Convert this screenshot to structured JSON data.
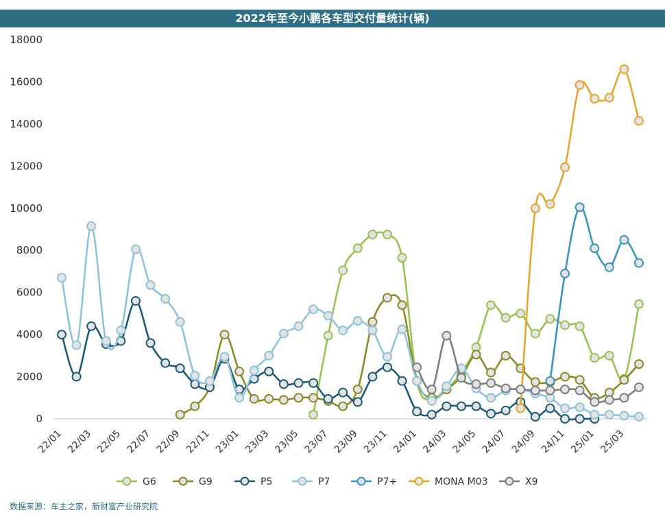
{
  "chart_data": {
    "type": "line",
    "title": "2022年至今小鹏各车型交付量统计(辆)",
    "xlabel": "",
    "ylabel": "",
    "ylim": [
      0,
      18000
    ],
    "yticks": [
      0,
      2000,
      4000,
      6000,
      8000,
      10000,
      12000,
      14000,
      16000,
      18000
    ],
    "x": [
      "22/01",
      "22/02",
      "22/03",
      "22/04",
      "22/05",
      "22/06",
      "22/07",
      "22/08",
      "22/09",
      "22/10",
      "22/11",
      "22/12",
      "23/01",
      "23/02",
      "23/03",
      "23/04",
      "23/05",
      "23/06",
      "23/07",
      "23/08",
      "23/09",
      "23/10",
      "23/11",
      "23/12",
      "24/01",
      "24/02",
      "24/03",
      "24/04",
      "24/05",
      "24/06",
      "24/07",
      "24/08",
      "24/09",
      "24/10",
      "24/11",
      "24/12",
      "25/01",
      "25/02",
      "25/03",
      "25/04"
    ],
    "xtick_labels": [
      "22/01",
      "22/03",
      "22/05",
      "22/07",
      "22/09",
      "22/11",
      "23/01",
      "23/03",
      "23/05",
      "23/07",
      "23/09",
      "23/11",
      "24/01",
      "24/03",
      "24/05",
      "24/07",
      "24/09",
      "24/11",
      "25/01",
      "25/03"
    ],
    "legend_position": "bottom",
    "grid": false,
    "series": [
      {
        "name": "G6",
        "color": "#9ac154",
        "values": [
          null,
          null,
          null,
          null,
          null,
          null,
          null,
          null,
          null,
          null,
          null,
          null,
          null,
          null,
          null,
          null,
          null,
          200,
          3950,
          7050,
          8100,
          8750,
          8750,
          7650,
          1800,
          900,
          1400,
          2200,
          3400,
          5400,
          4800,
          5000,
          4050,
          4750,
          4450,
          4400,
          2900,
          3000,
          1900,
          5450
        ]
      },
      {
        "name": "G9",
        "color": "#8b8a2a",
        "values": [
          null,
          null,
          null,
          null,
          null,
          null,
          null,
          null,
          200,
          600,
          1500,
          4000,
          2250,
          950,
          950,
          900,
          1000,
          1000,
          850,
          600,
          1400,
          4600,
          5750,
          5400,
          1800,
          1000,
          1400,
          2000,
          3050,
          2200,
          3000,
          2400,
          1750,
          1750,
          2000,
          1850,
          1000,
          1250,
          1850,
          2600
        ]
      },
      {
        "name": "P5",
        "color": "#1f5a73",
        "values": [
          4000,
          2000,
          4400,
          3550,
          3700,
          5600,
          3600,
          2650,
          2400,
          1650,
          1500,
          2850,
          1400,
          1900,
          2250,
          1650,
          1700,
          1700,
          950,
          1250,
          800,
          2000,
          2450,
          1800,
          350,
          200,
          600,
          600,
          600,
          250,
          400,
          800,
          100,
          500,
          0,
          0,
          0,
          null,
          null,
          null
        ]
      },
      {
        "name": "P7",
        "color": "#8fc3d8",
        "values": [
          6700,
          3500,
          9150,
          3700,
          4200,
          8050,
          6350,
          5700,
          4600,
          2050,
          1800,
          2950,
          1000,
          2300,
          3000,
          4050,
          4400,
          5200,
          4900,
          4200,
          4650,
          4200,
          2950,
          4250,
          1800,
          850,
          1550,
          2400,
          1450,
          1000,
          1350,
          1400,
          1200,
          1000,
          500,
          550,
          200,
          200,
          150,
          100
        ]
      },
      {
        "name": "P7+",
        "color": "#3c95b6",
        "values": [
          null,
          null,
          null,
          null,
          null,
          null,
          null,
          null,
          null,
          null,
          null,
          null,
          null,
          null,
          null,
          null,
          null,
          null,
          null,
          null,
          null,
          null,
          null,
          null,
          null,
          null,
          null,
          null,
          null,
          null,
          null,
          null,
          null,
          1800,
          6900,
          10050,
          8100,
          7200,
          8500,
          7400
        ]
      },
      {
        "name": "MONA M03",
        "color": "#e1a72f",
        "values": [
          null,
          null,
          null,
          null,
          null,
          null,
          null,
          null,
          null,
          null,
          null,
          null,
          null,
          null,
          null,
          null,
          null,
          null,
          null,
          null,
          null,
          null,
          null,
          null,
          null,
          null,
          null,
          null,
          null,
          null,
          null,
          500,
          10000,
          10200,
          11950,
          15850,
          15200,
          15250,
          16600,
          14150
        ]
      },
      {
        "name": "X9",
        "color": "#7f7f7f",
        "values": [
          null,
          null,
          null,
          null,
          null,
          null,
          null,
          null,
          null,
          null,
          null,
          null,
          null,
          null,
          null,
          null,
          null,
          null,
          null,
          null,
          null,
          null,
          null,
          null,
          2450,
          1400,
          3950,
          1950,
          1650,
          1700,
          1450,
          1400,
          1350,
          1350,
          1400,
          1350,
          800,
          900,
          1000,
          1500
        ]
      }
    ]
  },
  "source_note": "数据来源：车主之家，新财富产业研究院"
}
